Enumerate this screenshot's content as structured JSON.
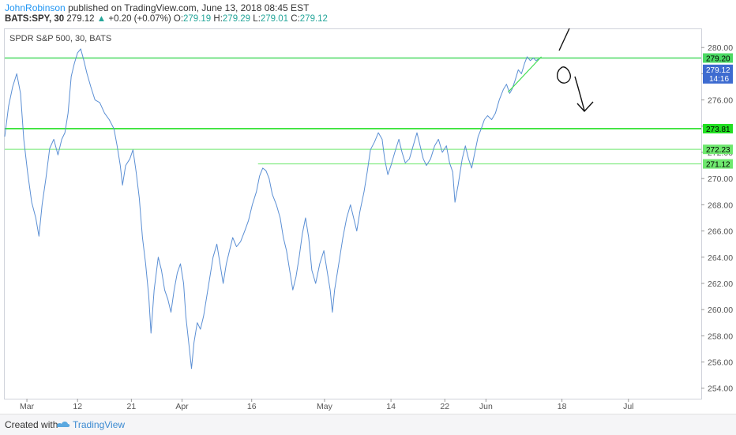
{
  "header": {
    "author": "JohnRobinson",
    "published_text": "published on TradingView.com, June 13, 2018 08:45 EST"
  },
  "quote": {
    "symbol": "BATS:SPY, 30",
    "last": "279.12",
    "change": "+0.20 (+0.07%)",
    "open_label": "O:",
    "open": "279.19",
    "high_label": "H:",
    "high": "279.29",
    "low_label": "L:",
    "low": "279.01",
    "close_label": "C:",
    "close": "279.12",
    "accent_color": "#26a69a"
  },
  "chart_title": "SPDR S&P 500, 30, BATS",
  "footer": {
    "created_with": "Created with",
    "brand": "TradingView"
  },
  "chart_data": {
    "type": "line",
    "series_color": "#5b8fd4",
    "ylim": [
      253.2,
      281.4
    ],
    "xlim": [
      0,
      22
    ],
    "y_ticks": [
      254,
      256,
      258,
      260,
      262,
      264,
      266,
      268,
      270,
      272,
      274,
      276,
      278,
      280
    ],
    "x_ticks": [
      {
        "label": "Mar",
        "pos": 0.7
      },
      {
        "label": "12",
        "pos": 2.3
      },
      {
        "label": "21",
        "pos": 4.0
      },
      {
        "label": "Apr",
        "pos": 5.6
      },
      {
        "label": "16",
        "pos": 7.8
      },
      {
        "label": "May",
        "pos": 10.1
      },
      {
        "label": "14",
        "pos": 12.2
      },
      {
        "label": "22",
        "pos": 13.9
      },
      {
        "label": "Jun",
        "pos": 15.2
      },
      {
        "label": "18",
        "pos": 17.6
      },
      {
        "label": "Jul",
        "pos": 19.7
      }
    ],
    "horizontal_levels": [
      {
        "value": 279.2,
        "label": "279.20",
        "color": "#4cd964",
        "thick": true,
        "start": 0
      },
      {
        "value": 273.81,
        "label": "273.81",
        "color": "#22e022",
        "thick": true,
        "start": 0
      },
      {
        "value": 272.23,
        "label": "272.23",
        "color": "#6ee86e",
        "thick": false,
        "start": 0
      },
      {
        "value": 271.12,
        "label": "271.12",
        "color": "#6ee86e",
        "thick": false,
        "start": 8.0
      }
    ],
    "current_price_label": {
      "value": 279.12,
      "label": "279.12",
      "time": "14:16"
    },
    "points": [
      [
        0.0,
        273.2
      ],
      [
        0.12,
        275.5
      ],
      [
        0.25,
        277.0
      ],
      [
        0.38,
        278.0
      ],
      [
        0.5,
        276.5
      ],
      [
        0.6,
        273.0
      ],
      [
        0.72,
        270.5
      ],
      [
        0.85,
        268.2
      ],
      [
        0.98,
        267.0
      ],
      [
        1.08,
        265.6
      ],
      [
        1.18,
        268.0
      ],
      [
        1.3,
        270.0
      ],
      [
        1.42,
        272.3
      ],
      [
        1.55,
        273.0
      ],
      [
        1.68,
        271.8
      ],
      [
        1.8,
        273.0
      ],
      [
        1.9,
        273.5
      ],
      [
        2.0,
        275.0
      ],
      [
        2.1,
        277.8
      ],
      [
        2.2,
        278.8
      ],
      [
        2.3,
        279.6
      ],
      [
        2.4,
        279.9
      ],
      [
        2.5,
        279.0
      ],
      [
        2.6,
        278.0
      ],
      [
        2.72,
        277.0
      ],
      [
        2.85,
        276.0
      ],
      [
        3.0,
        275.8
      ],
      [
        3.15,
        275.0
      ],
      [
        3.3,
        274.5
      ],
      [
        3.45,
        273.8
      ],
      [
        3.55,
        272.5
      ],
      [
        3.65,
        271.0
      ],
      [
        3.72,
        269.5
      ],
      [
        3.82,
        271.0
      ],
      [
        3.95,
        271.5
      ],
      [
        4.05,
        272.2
      ],
      [
        4.15,
        270.5
      ],
      [
        4.25,
        268.5
      ],
      [
        4.35,
        265.5
      ],
      [
        4.45,
        263.5
      ],
      [
        4.55,
        261.0
      ],
      [
        4.62,
        258.2
      ],
      [
        4.72,
        261.5
      ],
      [
        4.85,
        264.0
      ],
      [
        4.95,
        263.0
      ],
      [
        5.05,
        261.5
      ],
      [
        5.15,
        260.8
      ],
      [
        5.25,
        259.8
      ],
      [
        5.35,
        261.5
      ],
      [
        5.45,
        262.8
      ],
      [
        5.55,
        263.5
      ],
      [
        5.65,
        262.0
      ],
      [
        5.72,
        259.5
      ],
      [
        5.82,
        257.3
      ],
      [
        5.9,
        255.5
      ],
      [
        5.98,
        257.5
      ],
      [
        6.08,
        259.0
      ],
      [
        6.18,
        258.5
      ],
      [
        6.28,
        259.5
      ],
      [
        6.38,
        261.0
      ],
      [
        6.48,
        262.5
      ],
      [
        6.58,
        264.0
      ],
      [
        6.7,
        265.0
      ],
      [
        6.8,
        263.5
      ],
      [
        6.9,
        262.0
      ],
      [
        7.0,
        263.5
      ],
      [
        7.1,
        264.5
      ],
      [
        7.2,
        265.5
      ],
      [
        7.32,
        264.8
      ],
      [
        7.45,
        265.2
      ],
      [
        7.58,
        266.0
      ],
      [
        7.7,
        266.8
      ],
      [
        7.82,
        268.0
      ],
      [
        7.95,
        269.0
      ],
      [
        8.05,
        270.2
      ],
      [
        8.15,
        270.8
      ],
      [
        8.25,
        270.6
      ],
      [
        8.35,
        270.0
      ],
      [
        8.45,
        268.8
      ],
      [
        8.58,
        268.0
      ],
      [
        8.7,
        267.0
      ],
      [
        8.8,
        265.5
      ],
      [
        8.9,
        264.5
      ],
      [
        9.0,
        263.0
      ],
      [
        9.1,
        261.5
      ],
      [
        9.2,
        262.5
      ],
      [
        9.3,
        264.0
      ],
      [
        9.4,
        265.8
      ],
      [
        9.5,
        267.0
      ],
      [
        9.6,
        265.5
      ],
      [
        9.7,
        263.0
      ],
      [
        9.82,
        262.0
      ],
      [
        9.95,
        263.5
      ],
      [
        10.08,
        264.5
      ],
      [
        10.18,
        263.0
      ],
      [
        10.28,
        261.5
      ],
      [
        10.35,
        259.8
      ],
      [
        10.42,
        261.5
      ],
      [
        10.55,
        263.5
      ],
      [
        10.68,
        265.5
      ],
      [
        10.8,
        267.0
      ],
      [
        10.92,
        268.0
      ],
      [
        11.02,
        267.0
      ],
      [
        11.12,
        266.0
      ],
      [
        11.22,
        267.5
      ],
      [
        11.35,
        269.0
      ],
      [
        11.45,
        270.5
      ],
      [
        11.55,
        272.2
      ],
      [
        11.68,
        272.8
      ],
      [
        11.8,
        273.5
      ],
      [
        11.92,
        273.0
      ],
      [
        12.0,
        271.5
      ],
      [
        12.1,
        270.3
      ],
      [
        12.2,
        271.0
      ],
      [
        12.32,
        272.0
      ],
      [
        12.45,
        273.0
      ],
      [
        12.55,
        272.0
      ],
      [
        12.65,
        271.2
      ],
      [
        12.78,
        271.5
      ],
      [
        12.9,
        272.5
      ],
      [
        13.02,
        273.5
      ],
      [
        13.12,
        272.5
      ],
      [
        13.22,
        271.5
      ],
      [
        13.32,
        271.0
      ],
      [
        13.45,
        271.5
      ],
      [
        13.58,
        272.5
      ],
      [
        13.7,
        273.0
      ],
      [
        13.82,
        272.0
      ],
      [
        13.95,
        272.5
      ],
      [
        14.05,
        271.2
      ],
      [
        14.15,
        270.5
      ],
      [
        14.22,
        268.2
      ],
      [
        14.32,
        269.5
      ],
      [
        14.45,
        271.5
      ],
      [
        14.55,
        272.5
      ],
      [
        14.65,
        271.5
      ],
      [
        14.75,
        270.8
      ],
      [
        14.85,
        272.0
      ],
      [
        14.95,
        273.2
      ],
      [
        15.05,
        273.8
      ],
      [
        15.15,
        274.5
      ],
      [
        15.25,
        274.8
      ],
      [
        15.38,
        274.5
      ],
      [
        15.5,
        275.0
      ],
      [
        15.62,
        276.0
      ],
      [
        15.75,
        276.8
      ],
      [
        15.85,
        277.2
      ],
      [
        15.95,
        276.5
      ],
      [
        16.02,
        276.8
      ],
      [
        16.12,
        277.5
      ],
      [
        16.22,
        278.3
      ],
      [
        16.32,
        278.0
      ],
      [
        16.42,
        278.8
      ],
      [
        16.5,
        279.3
      ],
      [
        16.6,
        279.0
      ],
      [
        16.7,
        279.2
      ],
      [
        16.78,
        279.0
      ],
      [
        16.86,
        279.12
      ]
    ],
    "trendline": [
      [
        15.9,
        276.6
      ],
      [
        16.95,
        279.3
      ]
    ],
    "trendline_color": "#44dd55"
  }
}
